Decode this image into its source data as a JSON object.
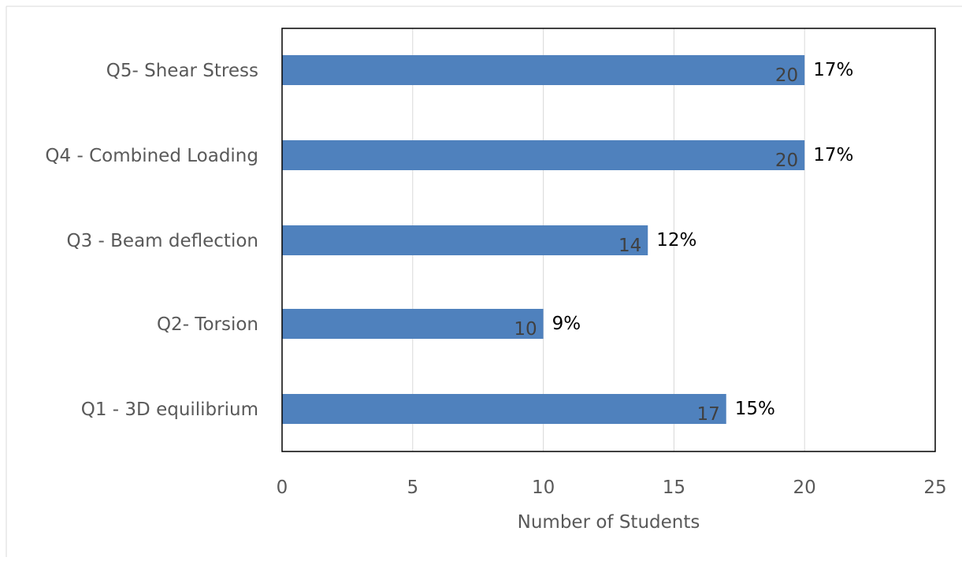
{
  "chart_data": {
    "type": "bar",
    "orientation": "horizontal",
    "categories": [
      "Q1 - 3D equilibrium",
      "Q2- Torsion",
      "Q3 - Beam deflection",
      "Q4 - Combined Loading",
      "Q5- Shear Stress"
    ],
    "values": [
      17,
      10,
      14,
      20,
      20
    ],
    "percent_labels": [
      "15%",
      "9%",
      "12%",
      "17%",
      "17%"
    ],
    "xlabel": "Number of Students",
    "ylabel": "",
    "xlim": [
      0,
      25
    ],
    "xticks": [
      0,
      5,
      10,
      15,
      20,
      25
    ],
    "xtick_labels": [
      "0",
      "5",
      "10",
      "15",
      "20",
      "25"
    ],
    "grid": "vertical",
    "legend": "none",
    "bar_color": "#4f81bd",
    "value_label_color": "#404040",
    "percent_label_color": "#000000"
  }
}
